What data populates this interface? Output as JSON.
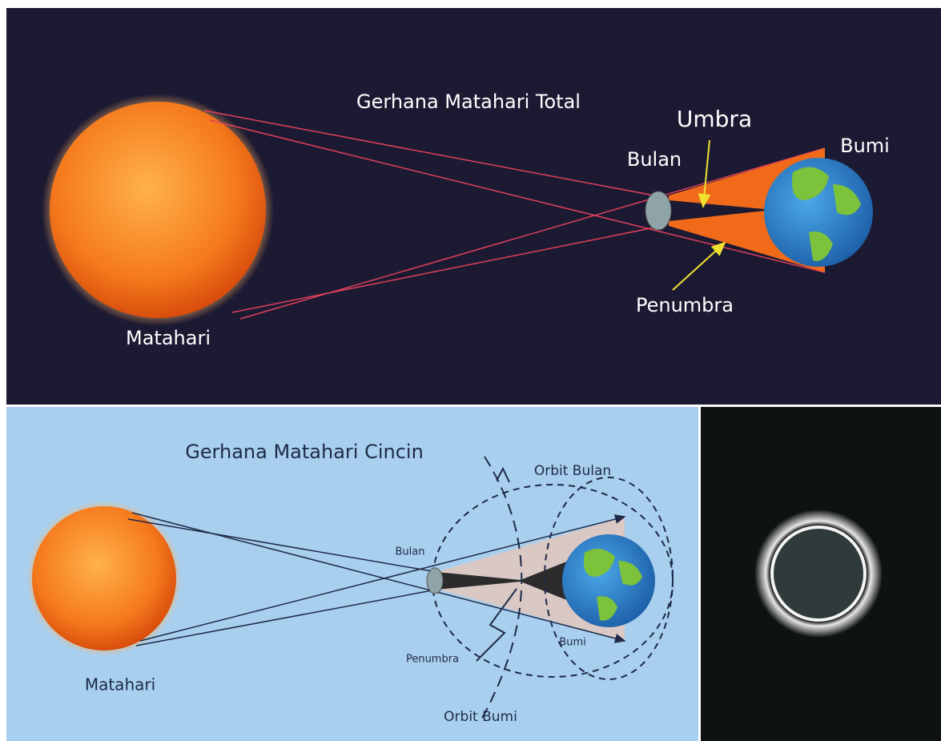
{
  "top_panel": {
    "title": "Gerhana Matahari Total",
    "labels": {
      "umbra": "Umbra",
      "earth": "Bumi",
      "moon": "Bulan",
      "penumbra": "Penumbra",
      "sun": "Matahari"
    }
  },
  "bottom_panel": {
    "title": "Gerhana Matahari Cincin",
    "labels": {
      "moon_orbit": "Orbit Bulan",
      "moon": "Bulan",
      "earth": "Bumi",
      "penumbra": "Penumbra",
      "sun": "Matahari",
      "earth_orbit": "Orbit Bumi"
    }
  }
}
